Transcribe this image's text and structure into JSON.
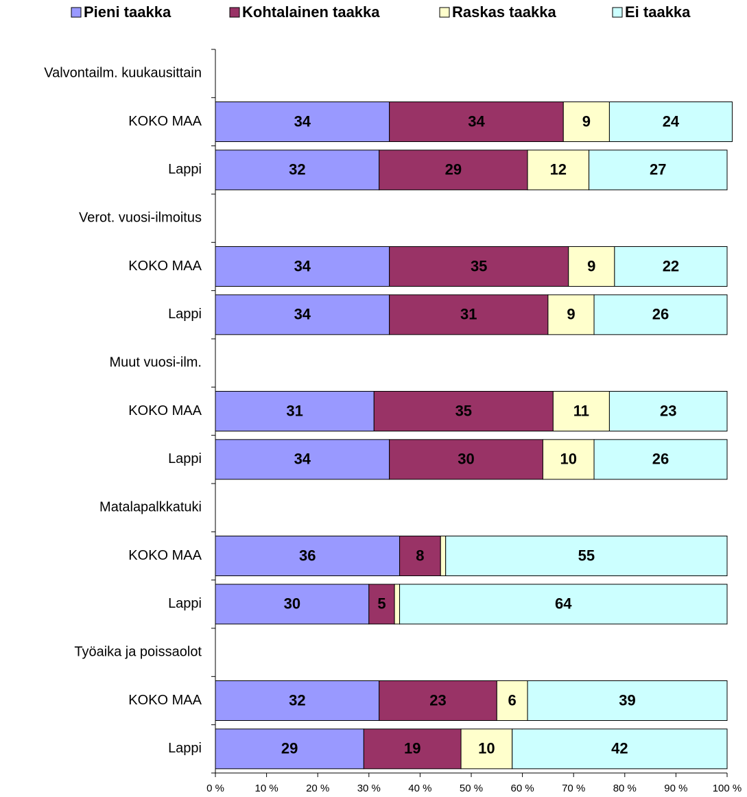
{
  "chart_data": {
    "type": "stacked-bar-horizontal",
    "categories": [
      "Valvontailm. kuukausittain",
      "KOKO MAA",
      "Lappi",
      "Verot. vuosi-ilmoitus",
      "KOKO MAA",
      "Lappi",
      "Muut vuosi-ilm.",
      "KOKO MAA",
      "Lappi",
      "Matalapalkkatuki",
      "KOKO MAA",
      "Lappi",
      "Työaika ja poissaolot",
      "KOKO MAA",
      "Lappi"
    ],
    "series": [
      {
        "name": "Pieni taakka",
        "color": "#9999ff",
        "values": [
          null,
          34,
          32,
          null,
          34,
          34,
          null,
          31,
          34,
          null,
          36,
          30,
          null,
          32,
          29
        ]
      },
      {
        "name": "Kohtalainen taakka",
        "color": "#993366",
        "values": [
          null,
          34,
          29,
          null,
          35,
          31,
          null,
          35,
          30,
          null,
          8,
          5,
          null,
          23,
          19
        ]
      },
      {
        "name": "Raskas taakka",
        "color": "#ffffcc",
        "values": [
          null,
          9,
          12,
          null,
          9,
          9,
          null,
          11,
          10,
          null,
          1,
          1,
          null,
          6,
          10
        ]
      },
      {
        "name": "Ei taakka",
        "color": "#ccffff",
        "values": [
          null,
          24,
          27,
          null,
          22,
          26,
          null,
          23,
          26,
          null,
          55,
          64,
          null,
          39,
          42
        ]
      }
    ],
    "xlim": [
      0,
      100
    ],
    "xticks": [
      {
        "value": 0,
        "label": "0 %"
      },
      {
        "value": 10,
        "label": "10 %"
      },
      {
        "value": 20,
        "label": "20 %"
      },
      {
        "value": 30,
        "label": "30 %"
      },
      {
        "value": 40,
        "label": "40 %"
      },
      {
        "value": 50,
        "label": "50 %"
      },
      {
        "value": 60,
        "label": "60 %"
      },
      {
        "value": 70,
        "label": "70 %"
      },
      {
        "value": 80,
        "label": "80 %"
      },
      {
        "value": 90,
        "label": "90 %"
      },
      {
        "value": 100,
        "label": "100 %"
      }
    ],
    "legend": "top"
  }
}
